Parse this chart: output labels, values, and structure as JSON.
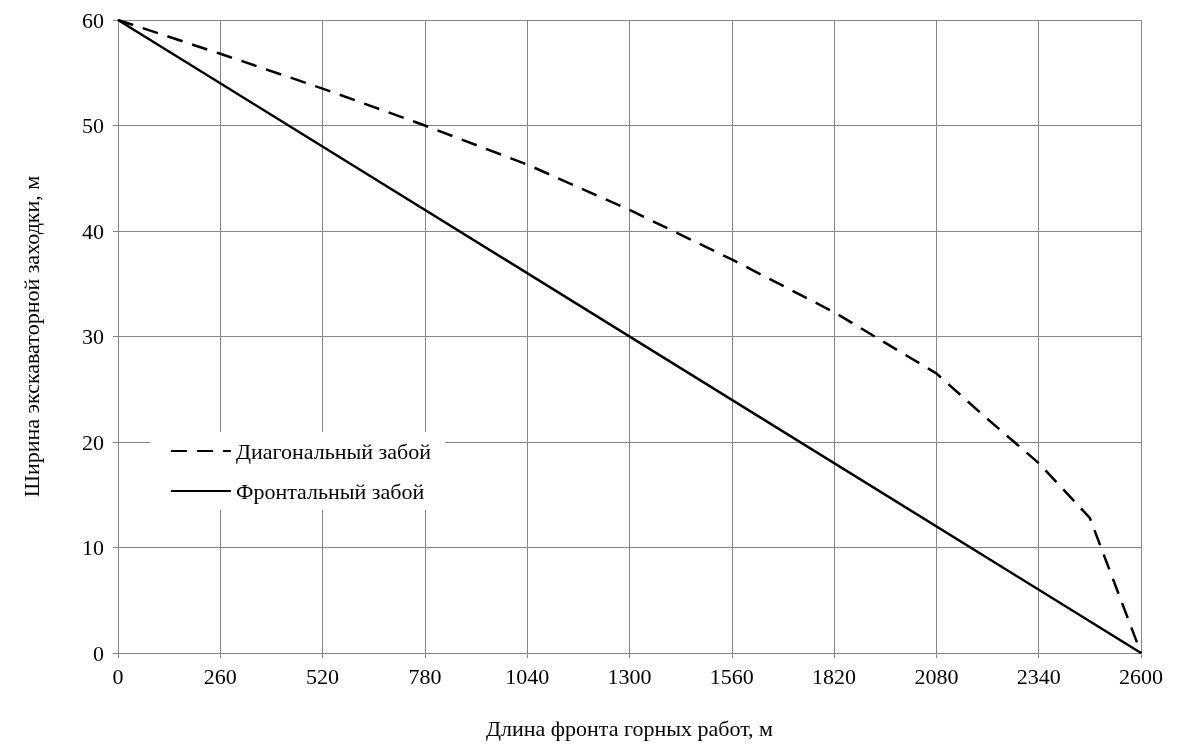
{
  "chart_data": {
    "type": "line",
    "xlabel": "Длина фронта горных работ, м",
    "ylabel": "Ширина экскаваторной заходки, м",
    "xlim": [
      0,
      2600
    ],
    "xticks": [
      0,
      260,
      520,
      780,
      1040,
      1300,
      1560,
      1820,
      2080,
      2340,
      2600
    ],
    "ylim": [
      0,
      60
    ],
    "yticks": [
      0,
      10,
      20,
      30,
      40,
      50,
      60
    ],
    "grid": true,
    "legend": "left",
    "marker": "none",
    "series": [
      {
        "name": "Диагональный забой",
        "color": "#000000",
        "line_style": "dashed",
        "x": [
          0,
          260,
          520,
          780,
          1040,
          1300,
          1560,
          1820,
          2080,
          2200,
          2340,
          2470,
          2600
        ],
        "values": [
          60,
          56.8,
          53.5,
          50,
          46.3,
          42,
          37.3,
          32.3,
          26.5,
          22.5,
          18,
          12.8,
          0
        ]
      },
      {
        "name": "Фронтальный забой",
        "color": "#000000",
        "line_style": "solid",
        "x": [
          0,
          2600
        ],
        "values": [
          60,
          0
        ]
      }
    ]
  }
}
